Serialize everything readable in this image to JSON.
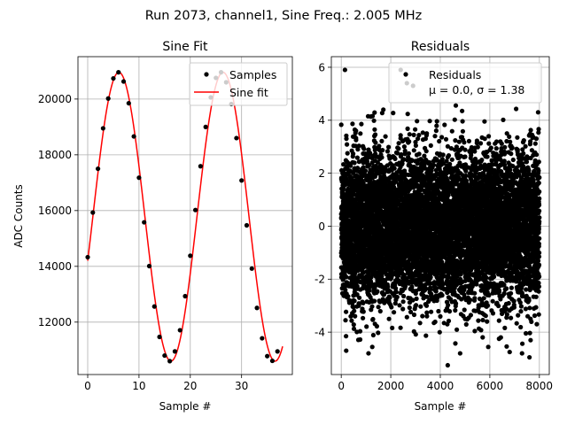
{
  "figure": {
    "suptitle": "Run 2073, channel1, Sine Freq.: 2.005 MHz"
  },
  "chart_data": [
    {
      "type": "scatter",
      "title": "Sine Fit",
      "xlabel": "Sample #",
      "ylabel": "ADC Counts",
      "xlim": [
        -1.9,
        39.9
      ],
      "ylim": [
        10120,
        21520
      ],
      "xticks": [
        0,
        10,
        20,
        30
      ],
      "yticks": [
        12000,
        14000,
        16000,
        18000,
        20000
      ],
      "grid": true,
      "legend": {
        "placement": "upper-right",
        "entries": [
          "Samples",
          "Sine fit"
        ]
      },
      "series": [
        {
          "name": "Samples",
          "style": "markers",
          "color": "#000000",
          "x": [
            0,
            1,
            2,
            3,
            4,
            5,
            6,
            7,
            8,
            9,
            10,
            11,
            12,
            13,
            14,
            15,
            16,
            17,
            18,
            19,
            20,
            21,
            22,
            23,
            24,
            25,
            26,
            27,
            28,
            29,
            30,
            31,
            32,
            33,
            34,
            35,
            36,
            37
          ],
          "y": [
            14330,
            15930,
            17500,
            18950,
            20020,
            20740,
            20960,
            20630,
            19850,
            18660,
            17180,
            15580,
            14010,
            12560,
            11470,
            10800,
            10600,
            10950,
            11710,
            12930,
            14380,
            16020,
            17590,
            19000,
            20060,
            20760,
            20960,
            20600,
            19820,
            18600,
            17080,
            15470,
            13920,
            12510,
            11420,
            10780,
            10610,
            10950
          ]
        },
        {
          "name": "Sine fit",
          "style": "line",
          "color": "#ff0000",
          "model": {
            "offset": 15780,
            "amplitude": 5180,
            "period": 20.3,
            "phase_rad": -0.31,
            "x_range": [
              0,
              38
            ]
          }
        }
      ]
    },
    {
      "type": "scatter",
      "title": "Residuals",
      "xlabel": "Sample #",
      "ylabel": "",
      "xlim": [
        -400,
        8400
      ],
      "ylim": [
        -5.6,
        6.4
      ],
      "xticks": [
        0,
        2000,
        4000,
        6000,
        8000
      ],
      "yticks": [
        -4,
        -2,
        0,
        2,
        4,
        6
      ],
      "grid": true,
      "legend": {
        "placement": "upper-right",
        "entries": [
          "Residuals",
          "μ = 0.0, σ = 1.38"
        ]
      },
      "series": [
        {
          "name": "Residuals",
          "style": "markers",
          "color": "#000000",
          "distribution": {
            "n": 8000,
            "mean": 0.0,
            "std": 1.38
          },
          "notable_points": [
            {
              "x": 2400,
              "y": 5.9
            },
            {
              "x": 2650,
              "y": 5.4
            },
            {
              "x": 2900,
              "y": 5.3
            },
            {
              "x": 150,
              "y": 5.9
            },
            {
              "x": 4300,
              "y": -5.25
            },
            {
              "x": 7600,
              "y": -4.95
            },
            {
              "x": 7300,
              "y": -4.8
            },
            {
              "x": 6800,
              "y": -4.75
            },
            {
              "x": 200,
              "y": -4.7
            },
            {
              "x": 1100,
              "y": -4.8
            },
            {
              "x": 4800,
              "y": -4.8
            },
            {
              "x": 7950,
              "y": 4.3
            },
            {
              "x": 1700,
              "y": 4.4
            }
          ]
        }
      ]
    }
  ]
}
